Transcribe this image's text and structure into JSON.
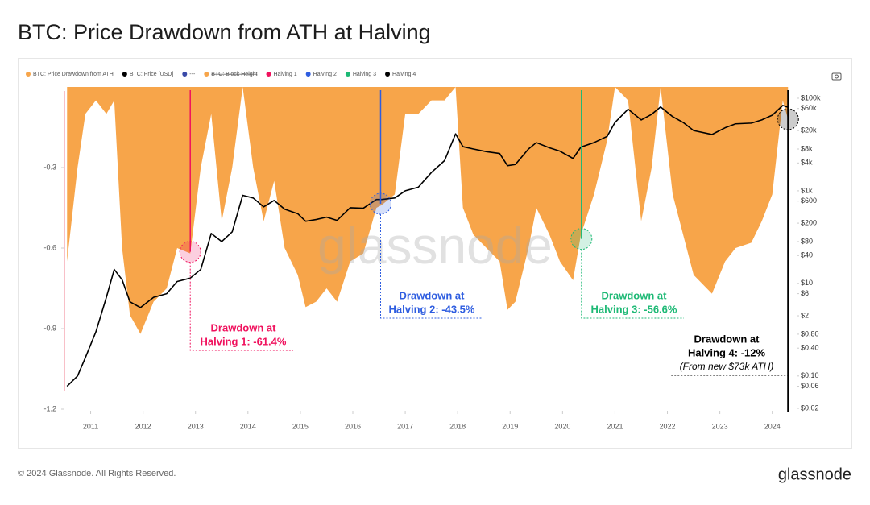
{
  "header": {
    "title": "BTC: Price Drawdown from ATH at Halving"
  },
  "footer": {
    "copyright": "© 2024 Glassnode. All Rights Reserved.",
    "brand": "glassnode"
  },
  "chart_data": {
    "type": "area-line",
    "watermark": "glassnode",
    "x": [
      2010.55,
      2010.75,
      2010.9,
      2011.1,
      2011.3,
      2011.45,
      2011.6,
      2011.75,
      2011.95,
      2012.2,
      2012.45,
      2012.65,
      2012.9,
      2013.1,
      2013.3,
      2013.5,
      2013.7,
      2013.9,
      2014.1,
      2014.3,
      2014.5,
      2014.7,
      2014.95,
      2015.1,
      2015.3,
      2015.5,
      2015.7,
      2015.95,
      2016.2,
      2016.45,
      2016.55,
      2016.8,
      2017.0,
      2017.25,
      2017.5,
      2017.75,
      2017.96,
      2018.1,
      2018.3,
      2018.55,
      2018.8,
      2018.95,
      2019.1,
      2019.35,
      2019.5,
      2019.75,
      2019.95,
      2020.2,
      2020.35,
      2020.6,
      2020.85,
      2021.0,
      2021.25,
      2021.5,
      2021.7,
      2021.87,
      2022.1,
      2022.3,
      2022.5,
      2022.85,
      2023.1,
      2023.3,
      2023.6,
      2023.8,
      2024.0,
      2024.2,
      2024.3
    ],
    "series": [
      {
        "name": "BTC: Price Drawdown from ATH",
        "color": "#f7a54a",
        "kind": "area",
        "values": [
          -0.65,
          -0.3,
          -0.1,
          -0.05,
          -0.1,
          -0.05,
          -0.6,
          -0.85,
          -0.92,
          -0.8,
          -0.75,
          -0.6,
          -0.62,
          -0.3,
          -0.1,
          -0.5,
          -0.3,
          0,
          -0.3,
          -0.5,
          -0.35,
          -0.6,
          -0.7,
          -0.82,
          -0.8,
          -0.75,
          -0.8,
          -0.65,
          -0.62,
          -0.45,
          -0.44,
          -0.4,
          -0.1,
          -0.1,
          -0.05,
          -0.05,
          0,
          -0.45,
          -0.55,
          -0.6,
          -0.65,
          -0.83,
          -0.8,
          -0.6,
          -0.45,
          -0.55,
          -0.65,
          -0.72,
          -0.55,
          -0.4,
          -0.2,
          0,
          -0.05,
          -0.5,
          -0.3,
          0,
          -0.4,
          -0.55,
          -0.7,
          -0.77,
          -0.65,
          -0.6,
          -0.58,
          -0.5,
          -0.4,
          -0.05,
          -0.12
        ]
      },
      {
        "name": "BTC: Price [USD]",
        "color": "#000000",
        "kind": "line",
        "axis": "y2",
        "values": [
          0.06,
          0.1,
          0.25,
          0.9,
          5,
          20,
          12,
          4,
          3,
          5,
          6,
          11,
          13,
          20,
          120,
          80,
          130,
          800,
          700,
          450,
          620,
          400,
          320,
          220,
          240,
          270,
          230,
          430,
          420,
          650,
          650,
          700,
          1000,
          1200,
          2500,
          4500,
          17000,
          9000,
          8000,
          7000,
          6400,
          3500,
          3700,
          8000,
          11000,
          8500,
          7200,
          5000,
          8800,
          11000,
          15000,
          30000,
          58000,
          34000,
          45000,
          65000,
          40000,
          30000,
          20000,
          16500,
          23000,
          28000,
          29000,
          34000,
          43000,
          70000,
          64000
        ]
      }
    ],
    "legend_extra": [
      {
        "name": "---",
        "color": "#3a4aa8"
      },
      {
        "name": "BTC: Block Height",
        "color": "#f7a54a",
        "hidden": true
      }
    ],
    "halvings": [
      {
        "name": "Halving 1",
        "x": 2012.9,
        "drawdown": -0.614,
        "color": "#f0115d",
        "annotation": [
          "Drawdown at",
          "Halving 1: -61.4%"
        ]
      },
      {
        "name": "Halving 2",
        "x": 2016.53,
        "drawdown": -0.435,
        "color": "#2e5de0",
        "annotation": [
          "Drawdown at",
          "Halving 2: -43.5%"
        ]
      },
      {
        "name": "Halving 3",
        "x": 2020.36,
        "drawdown": -0.566,
        "color": "#1db975",
        "annotation": [
          "Drawdown at",
          "Halving 3: -56.6%"
        ]
      },
      {
        "name": "Halving 4",
        "x": 2024.3,
        "drawdown": -0.12,
        "color": "#000000",
        "annotation": [
          "Drawdown at",
          "Halving 4: -12%",
          "(From new $73k ATH)"
        ]
      }
    ],
    "xlim": [
      2010.5,
      2024.45
    ],
    "xticks": [
      2011,
      2012,
      2013,
      2014,
      2015,
      2016,
      2017,
      2018,
      2019,
      2020,
      2021,
      2022,
      2023,
      2024
    ],
    "ylim": [
      -1.2,
      0
    ],
    "yticks": [
      -1.2,
      -0.9,
      -0.6,
      -0.3
    ],
    "y2lim": [
      0.0192,
      175000
    ],
    "y2scale": "log",
    "y2ticks": [
      {
        "value": 100000,
        "label": "$100k"
      },
      {
        "value": 60000,
        "label": "$60k"
      },
      {
        "value": 20000,
        "label": "$20k"
      },
      {
        "value": 8000,
        "label": "$8k"
      },
      {
        "value": 4000,
        "label": "$4k"
      },
      {
        "value": 1000,
        "label": "$1k"
      },
      {
        "value": 600,
        "label": "$600"
      },
      {
        "value": 200,
        "label": "$200"
      },
      {
        "value": 80,
        "label": "$80"
      },
      {
        "value": 40,
        "label": "$40"
      },
      {
        "value": 10,
        "label": "$10"
      },
      {
        "value": 6,
        "label": "$6"
      },
      {
        "value": 2,
        "label": "$2"
      },
      {
        "value": 0.8,
        "label": "$0.80"
      },
      {
        "value": 0.4,
        "label": "$0.40"
      },
      {
        "value": 0.1,
        "label": "$0.10"
      },
      {
        "value": 0.06,
        "label": "$0.06"
      },
      {
        "value": 0.02,
        "label": "$0.02"
      }
    ]
  }
}
